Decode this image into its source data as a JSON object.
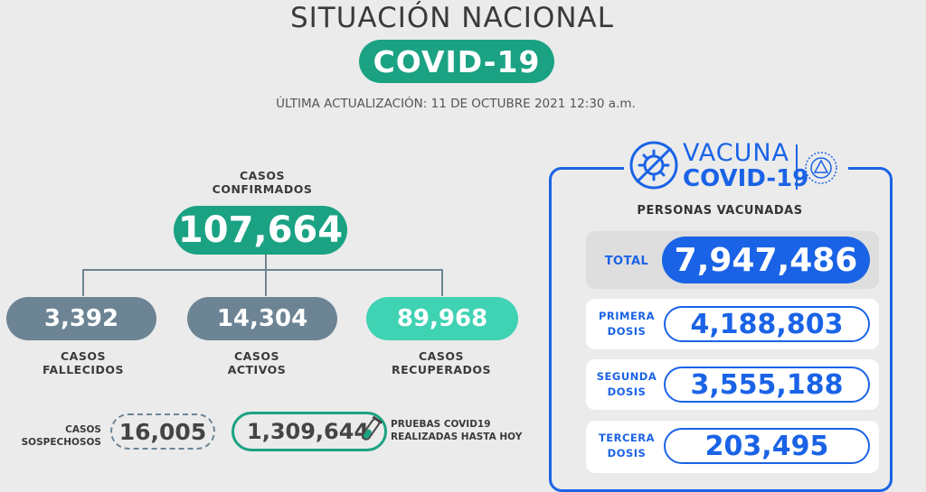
{
  "header": {
    "title": "SITUACIÓN NACIONAL",
    "badge": "COVID-19",
    "updated": "ÚLTIMA ACTUALIZACIÓN: 11 DE OCTUBRE 2021 12:30 a.m."
  },
  "cases": {
    "confirmed_label_1": "CASOS",
    "confirmed_label_2": "CONFIRMADOS",
    "confirmed_value": "107,664",
    "deaths_value": "3,392",
    "deaths_label_1": "CASOS",
    "deaths_label_2": "FALLECIDOS",
    "active_value": "14,304",
    "active_label_1": "CASOS",
    "active_label_2": "ACTIVOS",
    "recovered_value": "89,968",
    "recovered_label_1": "CASOS",
    "recovered_label_2": "RECUPERADOS",
    "suspected_label_1": "CASOS",
    "suspected_label_2": "SOSPECHOSOS",
    "suspected_value": "16,005",
    "tests_value": "1,309,644",
    "tests_label_1": "PRUEBAS COVID19",
    "tests_label_2": "REALIZADAS HASTA HOY"
  },
  "vaccine": {
    "logo_word_1": "VACUNA",
    "logo_word_2": "COVID-19",
    "subtitle": "PERSONAS VACUNADAS",
    "total_label": "TOTAL",
    "total_value": "7,947,486",
    "first_label_1": "PRIMERA",
    "first_label_2": "DOSIS",
    "first_value": "4,188,803",
    "second_label_1": "SEGUNDA",
    "second_label_2": "DOSIS",
    "second_value": "3,555,188",
    "third_label_1": "TERCERA",
    "third_label_2": "DOSIS",
    "third_value": "203,495"
  },
  "colors": {
    "teal": "#1aa283",
    "teal_light": "#3fd2b3",
    "slate": "#6c8494",
    "blue": "#1a63e6"
  }
}
